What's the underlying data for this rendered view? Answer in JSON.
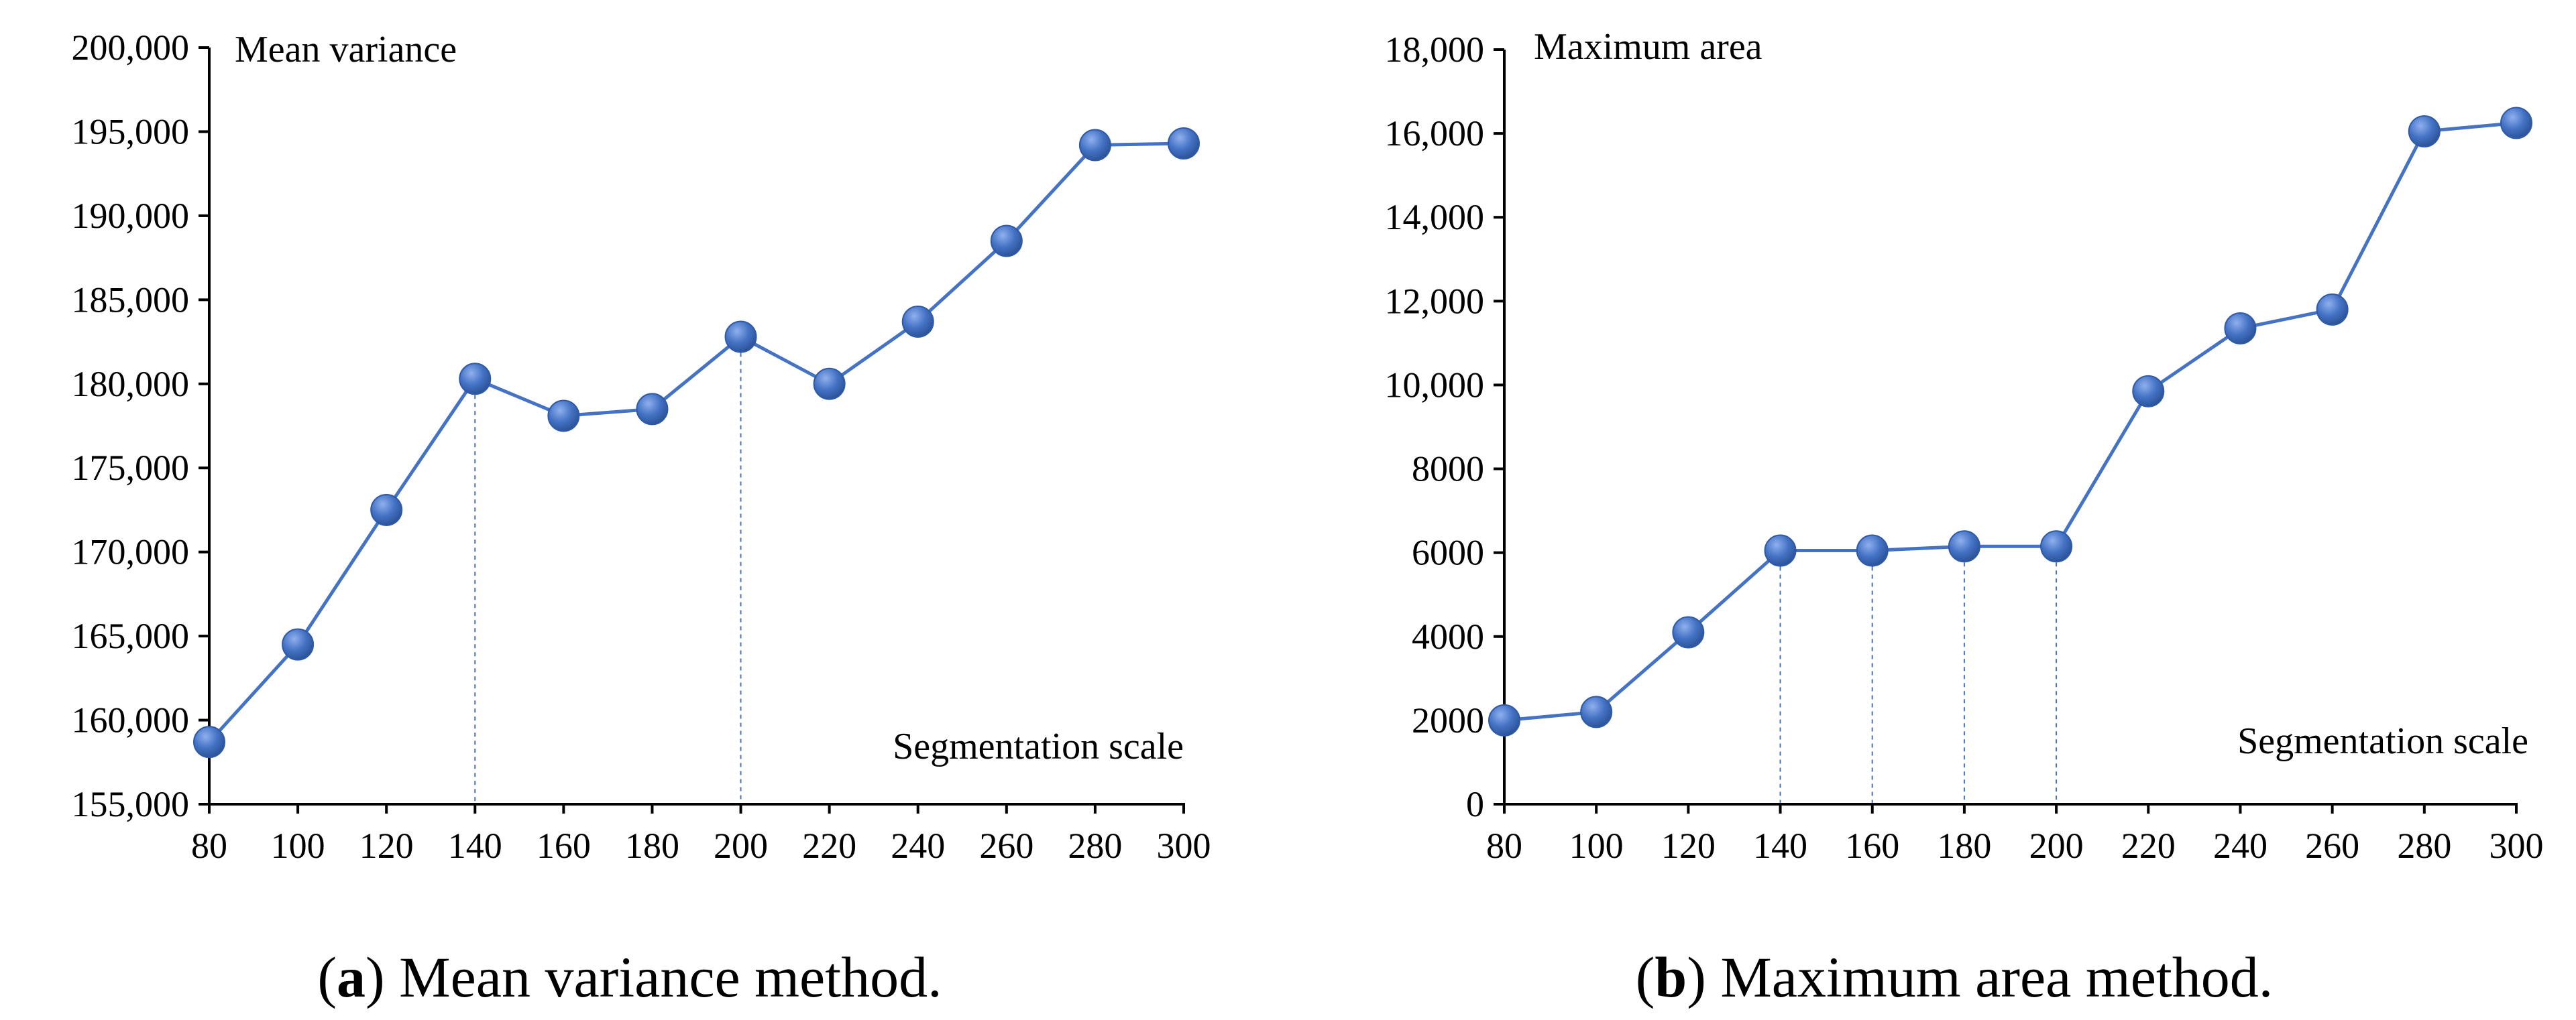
{
  "chart_data": [
    {
      "type": "line",
      "ylabel": "Mean variance",
      "xlabel": "Segmentation scale",
      "x": [
        80,
        100,
        120,
        140,
        160,
        180,
        200,
        220,
        240,
        260,
        280,
        300
      ],
      "values": [
        158700,
        164500,
        172500,
        180300,
        178100,
        178500,
        182800,
        180000,
        183700,
        188500,
        194200,
        194300
      ],
      "ylim": [
        155000,
        200000
      ],
      "yticks": [
        155000,
        160000,
        165000,
        170000,
        175000,
        180000,
        185000,
        190000,
        195000,
        200000
      ],
      "ytick_labels": [
        "155,000",
        "160,000",
        "165,000",
        "170,000",
        "175,000",
        "180,000",
        "185,000",
        "190,000",
        "195,000",
        "200,000"
      ],
      "xtick_labels": [
        "80",
        "100",
        "120",
        "140",
        "160",
        "180",
        "200",
        "220",
        "240",
        "260",
        "280",
        "300"
      ],
      "droplines_x": [
        140,
        200
      ],
      "caption_letter": "a",
      "caption_text": "Mean variance method.",
      "color": "#4472c4"
    },
    {
      "type": "line",
      "ylabel": "Maximum area",
      "xlabel": "Segmentation scale",
      "x": [
        80,
        100,
        120,
        140,
        160,
        180,
        200,
        220,
        240,
        260,
        280,
        300
      ],
      "values": [
        2000,
        2200,
        4100,
        6050,
        6050,
        6150,
        6150,
        9850,
        11350,
        11800,
        16050,
        16250
      ],
      "ylim": [
        0,
        18000
      ],
      "yticks": [
        0,
        2000,
        4000,
        6000,
        8000,
        10000,
        12000,
        14000,
        16000,
        18000
      ],
      "ytick_labels": [
        "0",
        "2000",
        "4000",
        "6000",
        "8000",
        "10,000",
        "12,000",
        "14,000",
        "16,000",
        "18,000"
      ],
      "xtick_labels": [
        "80",
        "100",
        "120",
        "140",
        "160",
        "180",
        "200",
        "220",
        "240",
        "260",
        "280",
        "300"
      ],
      "droplines_x": [
        140,
        160,
        180,
        200
      ],
      "caption_letter": "b",
      "caption_text": "Maximum area method.",
      "color": "#4472c4"
    }
  ]
}
